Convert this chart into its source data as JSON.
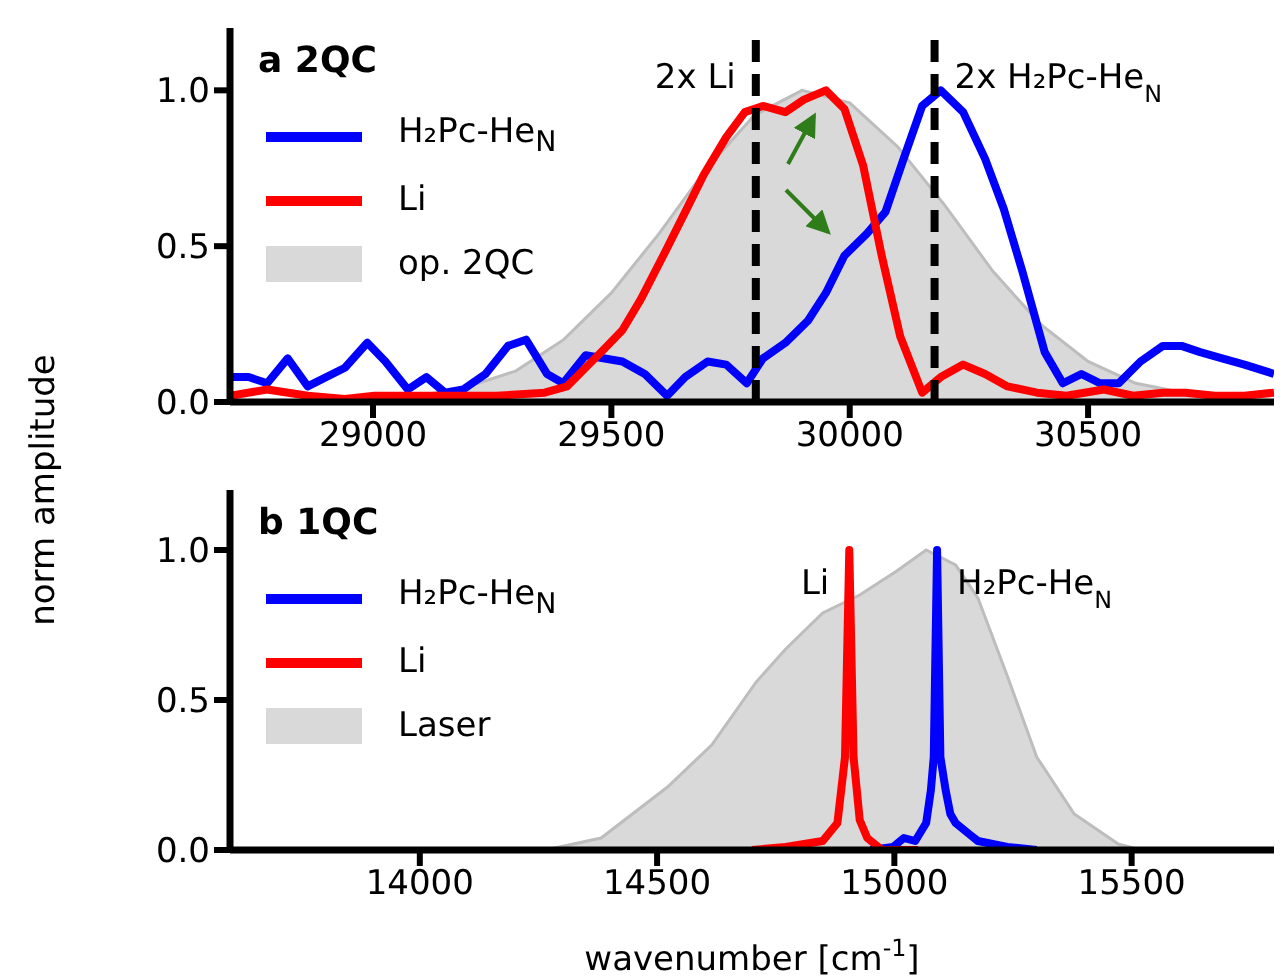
{
  "chart_data": [
    {
      "type": "line",
      "title": "a 2QC",
      "ylabel": "norm amplitude",
      "xlim": [
        28700,
        30890
      ],
      "xticks": [
        29000,
        29500,
        30000,
        30500
      ],
      "ylim": [
        0,
        1.2
      ],
      "yticks": [
        {
          "value": 0,
          "label": "0.0"
        },
        {
          "value": 0.5,
          "label": "0.5"
        },
        {
          "value": 1,
          "label": "1.0"
        }
      ],
      "legend": "top left",
      "ref_lines": [
        {
          "axis": "x",
          "value": 29803,
          "label": "2x Li",
          "color": "#000000",
          "line_style": "dashed"
        },
        {
          "axis": "x",
          "value": 30178,
          "label": "2x H₂Pc-He$_{N}$",
          "color": "#000000",
          "line_style": "dashed"
        }
      ],
      "series": [
        {
          "name": "H₂Pc-He$_{N}$",
          "color": "#0000ff",
          "x": [
            28700,
            28739,
            28778,
            28821,
            28863,
            28941,
            28988,
            29026,
            29073,
            29112,
            29151,
            29189,
            29236,
            29283,
            29321,
            29365,
            29399,
            29446,
            29523,
            29570,
            29617,
            29655,
            29702,
            29741,
            29784,
            29818,
            29865,
            29912,
            29950,
            29989,
            30036,
            30075,
            30113,
            30152,
            30191,
            30238,
            30284,
            30323,
            30362,
            30409,
            30447,
            30486,
            30525,
            30564,
            30610,
            30657,
            30696,
            30735,
            30781,
            30828,
            30890
          ],
          "values": [
            0.08,
            0.08,
            0.06,
            0.14,
            0.05,
            0.11,
            0.19,
            0.13,
            0.04,
            0.08,
            0.03,
            0.04,
            0.09,
            0.18,
            0.2,
            0.09,
            0.06,
            0.15,
            0.13,
            0.09,
            0.02,
            0.08,
            0.13,
            0.12,
            0.06,
            0.14,
            0.19,
            0.26,
            0.35,
            0.47,
            0.54,
            0.61,
            0.78,
            0.95,
            1.0,
            0.93,
            0.78,
            0.62,
            0.42,
            0.16,
            0.06,
            0.09,
            0.06,
            0.06,
            0.13,
            0.18,
            0.18,
            0.16,
            0.14,
            0.12,
            0.09
          ]
        },
        {
          "name": "Li",
          "color": "#ff0000",
          "x": [
            28700,
            28778,
            28863,
            28941,
            29003,
            29089,
            29174,
            29259,
            29360,
            29407,
            29446,
            29485,
            29523,
            29562,
            29609,
            29655,
            29694,
            29741,
            29780,
            29818,
            29865,
            29904,
            29950,
            29989,
            30028,
            30067,
            30106,
            30152,
            30191,
            30238,
            30284,
            30331,
            30393,
            30455,
            30533,
            30595,
            30657,
            30704,
            30766,
            30828,
            30890
          ],
          "values": [
            0.02,
            0.04,
            0.02,
            0.01,
            0.02,
            0.02,
            0.02,
            0.02,
            0.03,
            0.05,
            0.11,
            0.17,
            0.23,
            0.33,
            0.47,
            0.61,
            0.73,
            0.85,
            0.93,
            0.95,
            0.93,
            0.97,
            1.0,
            0.94,
            0.76,
            0.47,
            0.21,
            0.03,
            0.08,
            0.12,
            0.09,
            0.05,
            0.03,
            0.02,
            0.04,
            0.02,
            0.03,
            0.03,
            0.02,
            0.02,
            0.03
          ]
        },
        {
          "name": "op. 2QC",
          "type": "area",
          "color": "#d9d9d9",
          "x": [
            28700,
            28900,
            29100,
            29200,
            29300,
            29400,
            29500,
            29600,
            29700,
            29800,
            29900,
            30000,
            30100,
            30200,
            30300,
            30400,
            30500,
            30600,
            30700,
            30800,
            30890
          ],
          "values": [
            0.0,
            0.0,
            0.02,
            0.05,
            0.1,
            0.2,
            0.35,
            0.54,
            0.75,
            0.92,
            1.0,
            0.96,
            0.82,
            0.63,
            0.42,
            0.25,
            0.13,
            0.06,
            0.03,
            0.01,
            0.0
          ]
        }
      ]
    },
    {
      "type": "line",
      "title": "b 1QC",
      "xlabel": "wavenumber [cm$^{-1}$]",
      "xlim": [
        13600,
        15800
      ],
      "xticks": [
        14000,
        14500,
        15000,
        15500
      ],
      "ylim": [
        0,
        1.2
      ],
      "yticks": [
        {
          "value": 0,
          "label": "0.0"
        },
        {
          "value": 0.5,
          "label": "0.5"
        },
        {
          "value": 1,
          "label": "1.0"
        }
      ],
      "legend": "top left",
      "annotations": [
        {
          "text": "Li",
          "x": 14905,
          "y": 1.0
        },
        {
          "text": "H₂Pc-He$_{N}$",
          "x": 15090,
          "y": 1.0
        }
      ],
      "series": [
        {
          "name": "H₂Pc-He$_{N}$",
          "color": "#0000ff",
          "x": [
            14950,
            14997,
            15020,
            15044,
            15067,
            15077,
            15083,
            15090,
            15097,
            15108,
            15118,
            15129,
            15160,
            15176,
            15238,
            15300
          ],
          "values": [
            0.0,
            0.01,
            0.04,
            0.03,
            0.09,
            0.2,
            0.31,
            1.0,
            0.31,
            0.2,
            0.12,
            0.09,
            0.05,
            0.03,
            0.01,
            0.0
          ]
        },
        {
          "name": "Li",
          "color": "#ff0000",
          "x": [
            14700,
            14771,
            14849,
            14880,
            14896,
            14905,
            14914,
            14927,
            14943,
            14974,
            15050
          ],
          "values": [
            0.0,
            0.01,
            0.03,
            0.09,
            0.31,
            1.0,
            0.31,
            0.1,
            0.04,
            0.0,
            0.0
          ]
        },
        {
          "name": "Laser",
          "type": "area",
          "color": "#d9d9d9",
          "x": [
            13600,
            14265,
            14382,
            14522,
            14615,
            14709,
            14771,
            14849,
            14927,
            15005,
            15067,
            15129,
            15176,
            15238,
            15300,
            15379,
            15472,
            15519,
            15800
          ],
          "values": [
            0.0,
            0.0,
            0.04,
            0.21,
            0.35,
            0.56,
            0.67,
            0.79,
            0.85,
            0.93,
            1.0,
            0.95,
            0.84,
            0.58,
            0.31,
            0.12,
            0.02,
            0.0,
            0.0
          ]
        }
      ]
    }
  ]
}
